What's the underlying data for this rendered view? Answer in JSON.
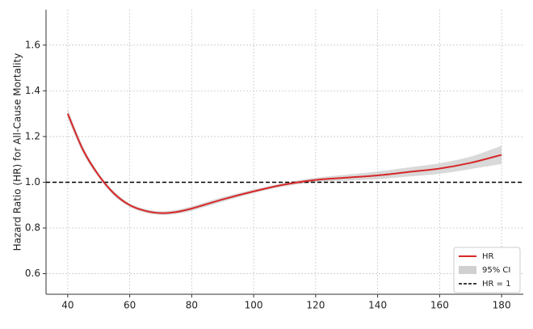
{
  "chart_data": {
    "type": "line",
    "y_label": "Hazard Ratio (HR) for All-Cause Mortality",
    "x": [
      40,
      45,
      50,
      55,
      60,
      65,
      70,
      75,
      80,
      90,
      100,
      110,
      120,
      130,
      140,
      150,
      160,
      170,
      180
    ],
    "series": [
      {
        "name": "HR",
        "color": "#d62728",
        "values": [
          1.3,
          1.14,
          1.03,
          0.95,
          0.9,
          0.875,
          0.865,
          0.87,
          0.885,
          0.925,
          0.96,
          0.99,
          1.01,
          1.02,
          1.03,
          1.045,
          1.06,
          1.085,
          1.12
        ]
      }
    ],
    "band": {
      "name": "95% CI",
      "color": "#d0d0d0",
      "lower": [
        1.28,
        1.125,
        1.02,
        0.94,
        0.892,
        0.867,
        0.857,
        0.861,
        0.875,
        0.915,
        0.952,
        0.982,
        1.0,
        1.007,
        1.013,
        1.025,
        1.037,
        1.058,
        1.08
      ],
      "upper": [
        1.32,
        1.155,
        1.04,
        0.96,
        0.908,
        0.883,
        0.873,
        0.879,
        0.895,
        0.935,
        0.968,
        0.998,
        1.02,
        1.033,
        1.047,
        1.065,
        1.083,
        1.112,
        1.16
      ]
    },
    "reference_line": {
      "name": "HR = 1",
      "value": 1,
      "color": "#000000"
    },
    "xlim": [
      33,
      187
    ],
    "ylim": [
      0.51,
      1.755
    ],
    "xticks": [
      40,
      60,
      80,
      100,
      120,
      140,
      160,
      180
    ],
    "yticks": [
      0.6,
      0.8,
      {
        "value": 1.0,
        "label": "1.0"
      },
      1.2,
      1.4,
      1.6
    ],
    "grid": true,
    "legend": "lower right"
  }
}
